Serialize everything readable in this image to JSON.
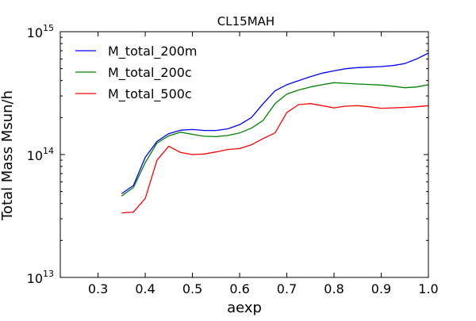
{
  "chart_data": {
    "type": "line",
    "title": "CL15MAH",
    "xlabel": "aexp",
    "ylabel": "Total Mass Msun/h",
    "xlim": [
      0.22,
      1.0
    ],
    "ylim": [
      10000000000000.0,
      1000000000000000.0
    ],
    "yscale": "log",
    "grid": false,
    "legend_position": "top-left",
    "x_ticks": [
      0.3,
      0.4,
      0.5,
      0.6,
      0.7,
      0.8,
      0.9,
      1.0
    ],
    "x_tick_labels": [
      "0.3",
      "0.4",
      "0.5",
      "0.6",
      "0.7",
      "0.8",
      "0.9",
      "1.0"
    ],
    "y_ticks": [
      10000000000000.0,
      100000000000000.0,
      1000000000000000.0
    ],
    "y_tick_base": "10",
    "y_tick_exps": [
      "13",
      "14",
      "15"
    ],
    "x": [
      0.35,
      0.375,
      0.4,
      0.425,
      0.45,
      0.475,
      0.5,
      0.525,
      0.55,
      0.575,
      0.6,
      0.625,
      0.65,
      0.675,
      0.7,
      0.725,
      0.75,
      0.775,
      0.8,
      0.825,
      0.85,
      0.875,
      0.9,
      0.925,
      0.95,
      0.975,
      1.0
    ],
    "series": [
      {
        "name": "M_total_200m",
        "color": "#0000ff",
        "values": [
          48000000000000.0,
          56000000000000.0,
          95000000000000.0,
          128000000000000.0,
          148000000000000.0,
          158000000000000.0,
          160000000000000.0,
          157000000000000.0,
          157000000000000.0,
          162000000000000.0,
          175000000000000.0,
          200000000000000.0,
          260000000000000.0,
          330000000000000.0,
          370000000000000.0,
          400000000000000.0,
          430000000000000.0,
          460000000000000.0,
          480000000000000.0,
          500000000000000.0,
          510000000000000.0,
          515000000000000.0,
          520000000000000.0,
          530000000000000.0,
          550000000000000.0,
          600000000000000.0,
          670000000000000.0
        ]
      },
      {
        "name": "M_total_200c",
        "color": "#008000",
        "values": [
          46000000000000.0,
          54000000000000.0,
          86000000000000.0,
          124000000000000.0,
          142000000000000.0,
          152000000000000.0,
          146000000000000.0,
          141000000000000.0,
          140000000000000.0,
          143000000000000.0,
          150000000000000.0,
          164000000000000.0,
          190000000000000.0,
          260000000000000.0,
          310000000000000.0,
          335000000000000.0,
          355000000000000.0,
          370000000000000.0,
          385000000000000.0,
          380000000000000.0,
          375000000000000.0,
          372000000000000.0,
          368000000000000.0,
          360000000000000.0,
          350000000000000.0,
          355000000000000.0,
          370000000000000.0
        ]
      },
      {
        "name": "M_total_500c",
        "color": "#ff0000",
        "values": [
          33500000000000.0,
          34000000000000.0,
          44000000000000.0,
          90000000000000.0,
          117000000000000.0,
          104000000000000.0,
          100000000000000.0,
          101000000000000.0,
          105000000000000.0,
          110000000000000.0,
          112000000000000.0,
          120000000000000.0,
          135000000000000.0,
          150000000000000.0,
          220000000000000.0,
          255000000000000.0,
          260000000000000.0,
          250000000000000.0,
          240000000000000.0,
          248000000000000.0,
          250000000000000.0,
          245000000000000.0,
          238000000000000.0,
          240000000000000.0,
          242000000000000.0,
          245000000000000.0,
          250000000000000.0
        ]
      }
    ]
  }
}
